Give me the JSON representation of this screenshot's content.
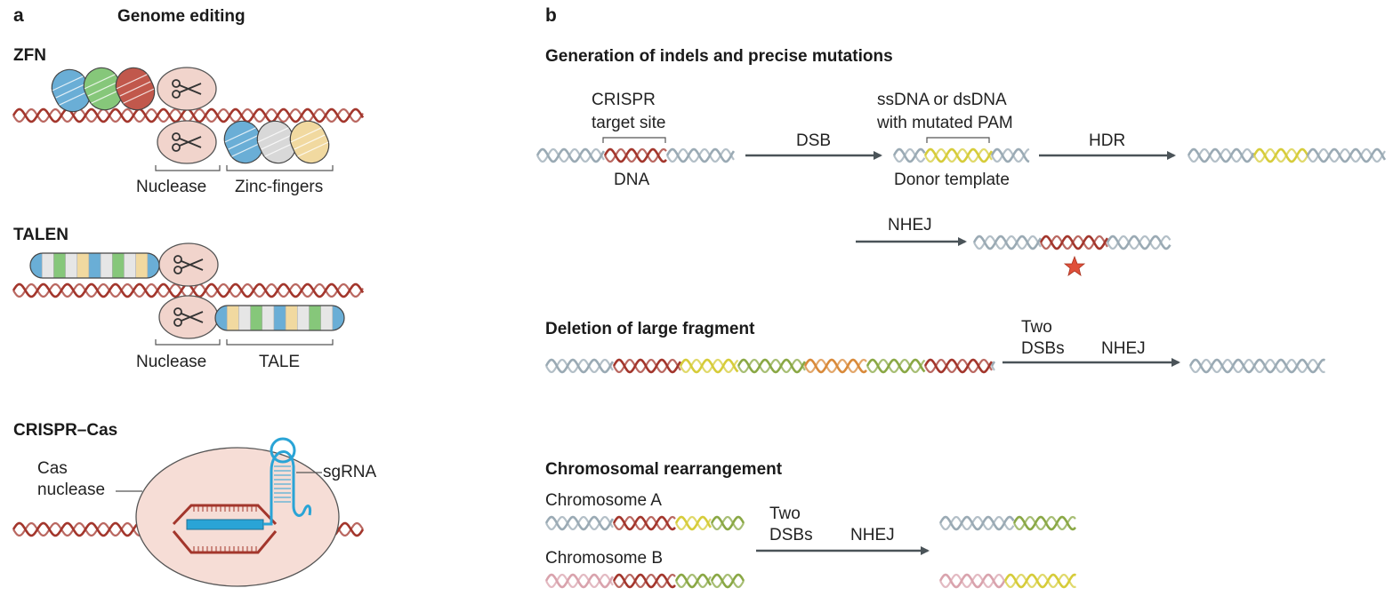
{
  "panel_a": {
    "letter": "a",
    "title": "Genome editing",
    "zfn": {
      "title": "ZFN",
      "nuclease_label": "Nuclease",
      "domain_label": "Zinc-fingers"
    },
    "talen": {
      "title": "TALEN",
      "nuclease_label": "Nuclease",
      "domain_label": "TALE"
    },
    "crispr": {
      "title": "CRISPR–Cas",
      "cas_label_line1": "Cas",
      "cas_label_line2": "nuclease",
      "sgrna_label": "sgRNA"
    }
  },
  "panel_b": {
    "letter": "b",
    "indels": {
      "title": "Generation of indels and precise mutations",
      "target_line1": "CRISPR",
      "target_line2": "target site",
      "dna_label": "DNA",
      "dsb_label": "DSB",
      "donor_line1": "ssDNA or dsDNA",
      "donor_line2": "with mutated PAM",
      "donor_label": "Donor template",
      "hdr_label": "HDR",
      "nhej_label": "NHEJ"
    },
    "deletion": {
      "title": "Deletion of large fragment",
      "two_line1": "Two",
      "two_line2": "DSBs",
      "nhej_label": "NHEJ"
    },
    "rearrangement": {
      "title": "Chromosomal rearrangement",
      "chrom_a": "Chromosome A",
      "chrom_b": "Chromosome B",
      "two_line1": "Two",
      "two_line2": "DSBs",
      "nhej_label": "NHEJ"
    }
  },
  "colors": {
    "dna_red": "#a3362c",
    "dna_grey": "#9aaab4",
    "dna_yellow": "#d6cc3a",
    "dna_green": "#8aa845",
    "dna_orange": "#d98a3a",
    "dna_pink": "#d9a3ad",
    "arrow": "#4a5358",
    "zf_blue": "#6aaed6",
    "zf_green": "#86c77a",
    "zf_red": "#c1584c",
    "zf_grey": "#d8d8d8",
    "zf_yellow": "#f1d9a0",
    "nuclease_fill": "#f1d4cc",
    "cas_fill": "#f6ddd6",
    "sgrna_blue": "#2aa4d6",
    "star": "#e0503a"
  }
}
